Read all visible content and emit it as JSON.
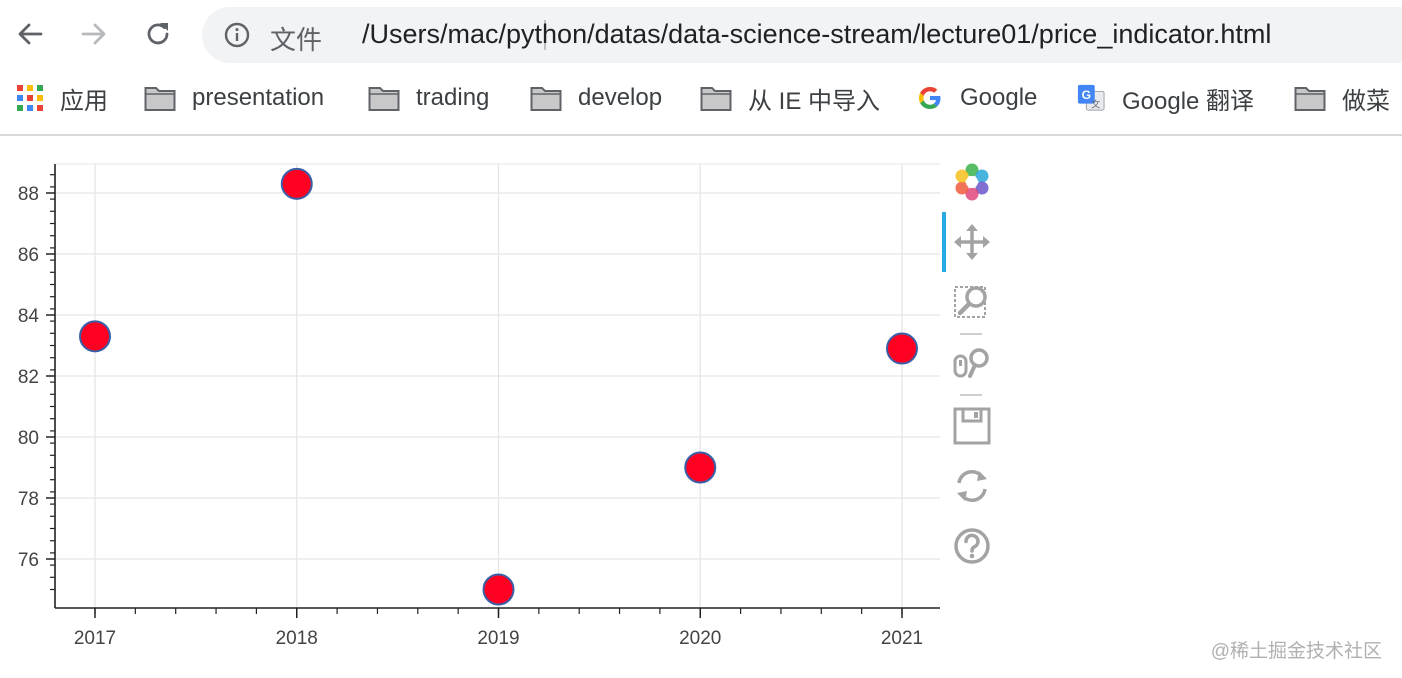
{
  "browser": {
    "site_label": "文件",
    "url": "/Users/mac/python/datas/data-science-stream/lecture01/price_indicator.html"
  },
  "bookmarks": [
    {
      "label": "应用",
      "icon": "apps-grid-icon"
    },
    {
      "label": "presentation",
      "icon": "folder-icon"
    },
    {
      "label": "trading",
      "icon": "folder-icon"
    },
    {
      "label": "develop",
      "icon": "folder-icon"
    },
    {
      "label": "从 IE 中导入",
      "icon": "folder-icon"
    },
    {
      "label": "Google",
      "icon": "google-icon"
    },
    {
      "label": "Google 翻译",
      "icon": "google-translate-icon"
    },
    {
      "label": "做菜",
      "icon": "folder-icon"
    }
  ],
  "chart_data": {
    "type": "scatter",
    "x": [
      2017,
      2018,
      2019,
      2020,
      2021
    ],
    "y": [
      83.3,
      88.3,
      75.0,
      79.0,
      82.9
    ],
    "x_ticks": [
      "2017",
      "2018",
      "2019",
      "2020",
      "2021"
    ],
    "y_ticks": [
      76,
      78,
      80,
      82,
      84,
      86,
      88
    ],
    "xlim": [
      2016.8,
      2021.2
    ],
    "ylim": [
      74.5,
      89.0
    ],
    "grid": true,
    "marker": {
      "fill": "#ff0022",
      "stroke": "#3a5fa6"
    }
  },
  "plot_tools": [
    {
      "name": "bokeh-logo-icon"
    },
    {
      "name": "pan-tool-icon",
      "active": true
    },
    {
      "name": "box-zoom-tool-icon"
    },
    {
      "name": "wheel-zoom-tool-icon"
    },
    {
      "name": "save-tool-icon"
    },
    {
      "name": "reset-tool-icon"
    },
    {
      "name": "help-tool-icon"
    }
  ],
  "watermark": "@稀土掘金技术社区"
}
